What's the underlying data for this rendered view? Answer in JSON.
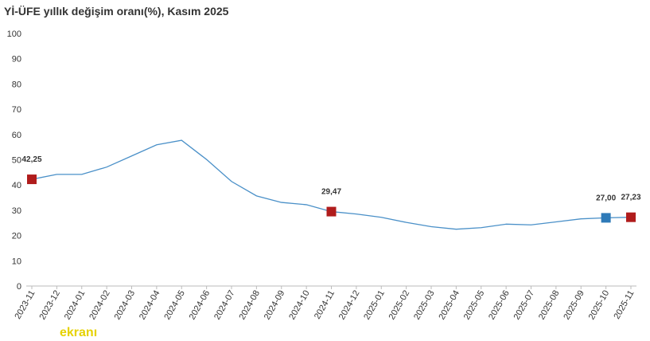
{
  "chart_data": {
    "type": "line",
    "title": "Yİ-ÜFE yıllık değişim oranı(%), Kasım 2025",
    "categories": [
      "2023-11",
      "2023-12",
      "2024-01",
      "2024-02",
      "2024-03",
      "2024-04",
      "2024-05",
      "2024-06",
      "2024-07",
      "2024-08",
      "2024-09",
      "2024-10",
      "2024-11",
      "2024-12",
      "2025-01",
      "2025-02",
      "2025-03",
      "2025-04",
      "2025-05",
      "2025-06",
      "2025-07",
      "2025-08",
      "2025-09",
      "2025-10",
      "2025-11"
    ],
    "values": [
      42.25,
      44.2,
      44.2,
      47.1,
      51.5,
      55.9,
      57.7,
      50.1,
      41.4,
      35.7,
      33.1,
      32.2,
      29.47,
      28.5,
      27.2,
      25.2,
      23.5,
      22.5,
      23.1,
      24.5,
      24.2,
      25.4,
      26.6,
      27.0,
      27.23
    ],
    "value_labels": [
      "42,25",
      null,
      null,
      null,
      null,
      null,
      null,
      null,
      null,
      null,
      null,
      null,
      "29,47",
      null,
      null,
      null,
      null,
      null,
      null,
      null,
      null,
      null,
      null,
      "27,00",
      "27,23"
    ],
    "marker_colors": [
      "#b01c1c",
      null,
      null,
      null,
      null,
      null,
      null,
      null,
      null,
      null,
      null,
      null,
      "#b01c1c",
      null,
      null,
      null,
      null,
      null,
      null,
      null,
      null,
      null,
      null,
      "#2e7ab8",
      "#b01c1c"
    ],
    "color": "#4a90c8",
    "ylim": [
      0,
      100
    ],
    "yticks": [
      0,
      10,
      20,
      30,
      40,
      50,
      60,
      70,
      80,
      90,
      100
    ],
    "watermark": "ekranı"
  }
}
